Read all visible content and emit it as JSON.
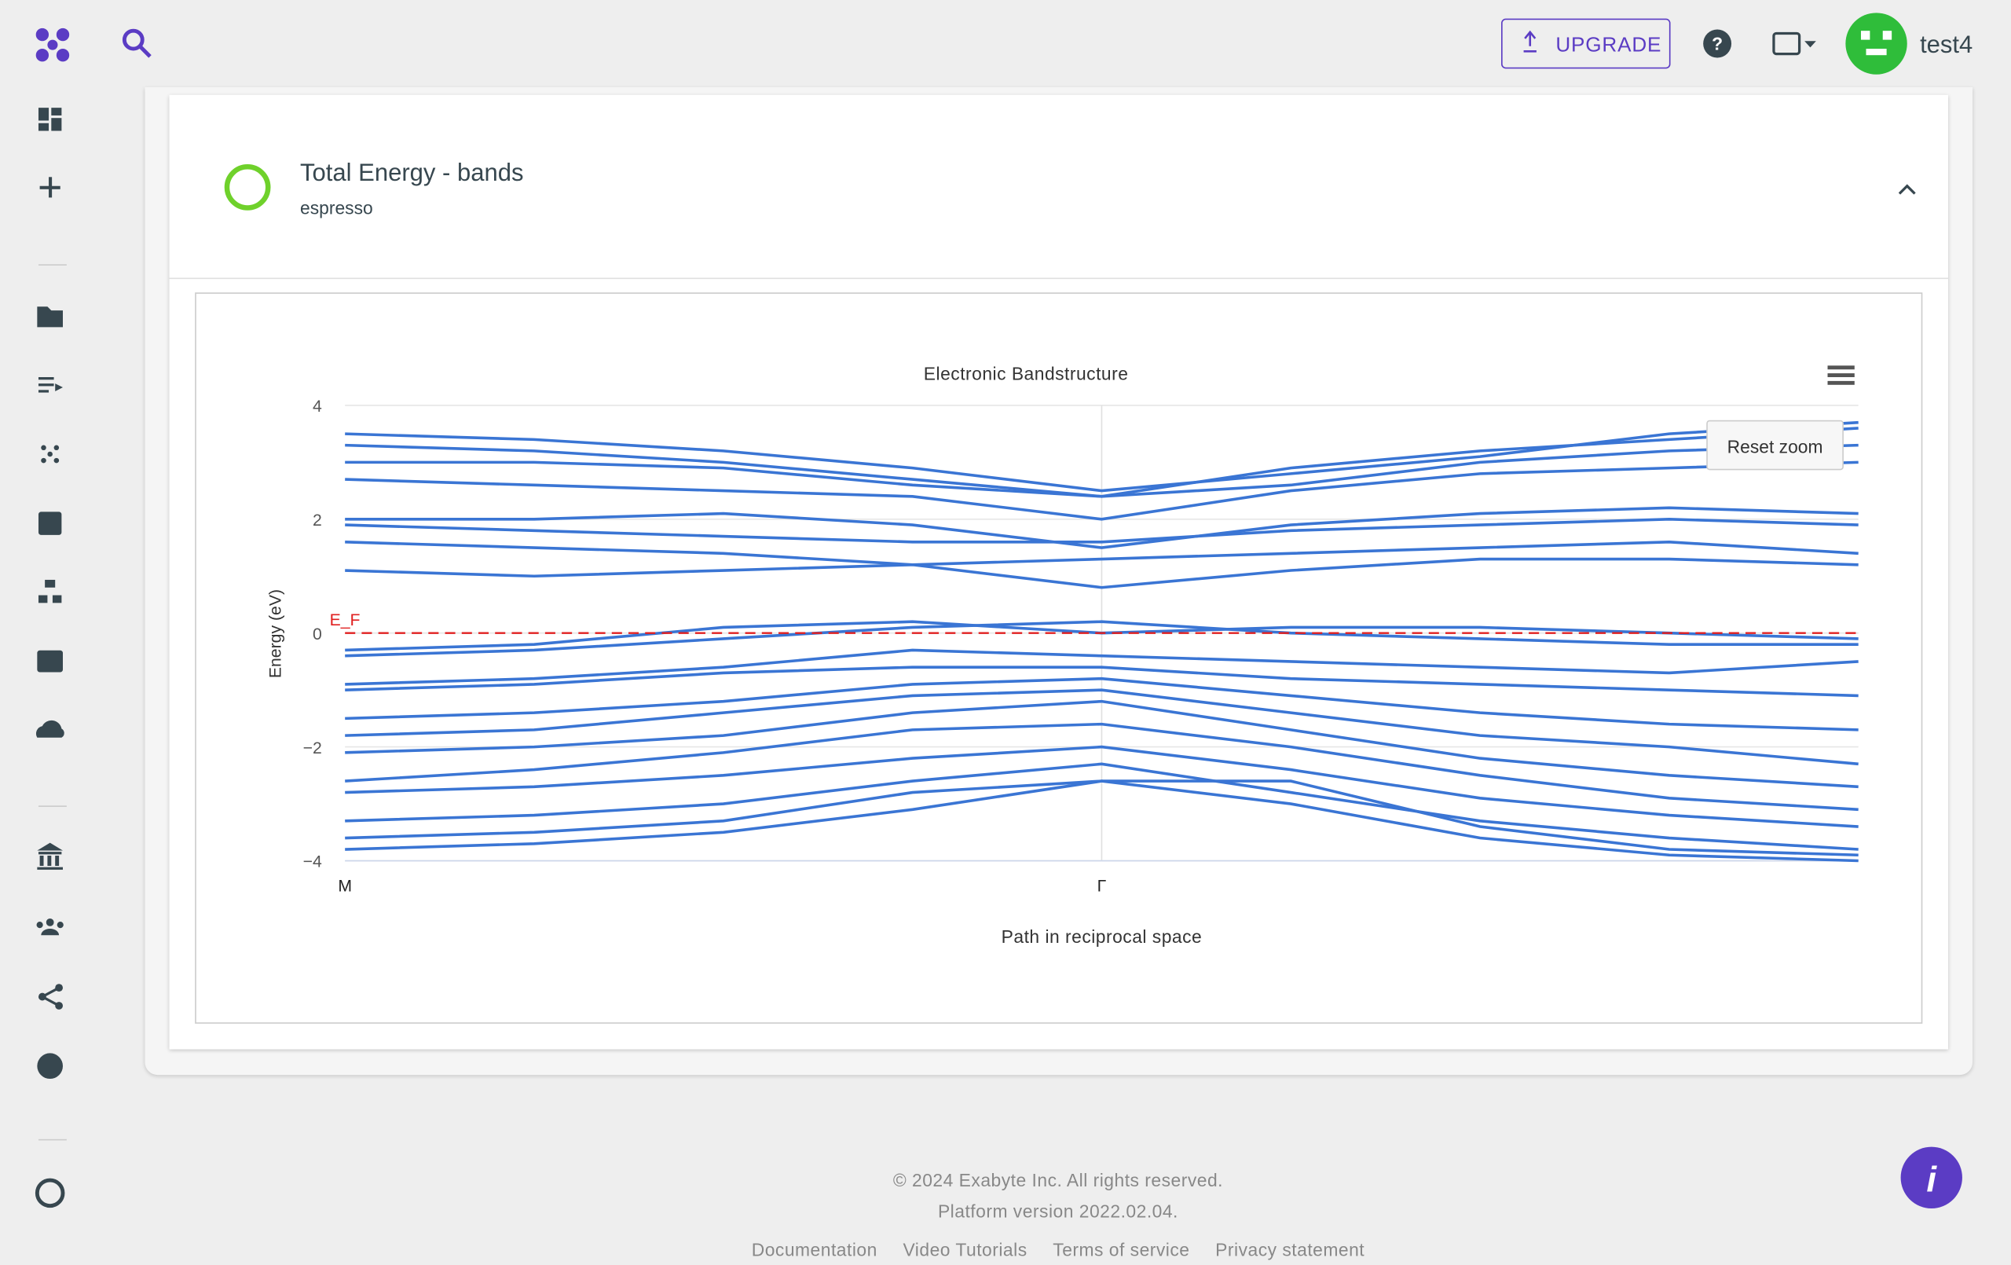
{
  "header": {
    "upgrade": "UPGRADE",
    "username": "test4"
  },
  "card": {
    "title": "Total Energy - bands",
    "subtitle": "espresso"
  },
  "chart_data": {
    "type": "line",
    "title": "Electronic Bandstructure",
    "x_label": "Path in reciprocal space",
    "y_label": "Energy (eV)",
    "categories": [
      "M",
      null,
      null,
      null,
      "Γ",
      null,
      null,
      null,
      null
    ],
    "color": "#3a75d4",
    "grid": true,
    "ylim": [
      -4,
      4
    ],
    "yticks": [
      {
        "value": -4,
        "label": "−4"
      },
      {
        "value": -2,
        "label": "−2"
      },
      0,
      2,
      4
    ],
    "fermi_level": {
      "label": "E_F",
      "value": 0,
      "color": "#e02020"
    },
    "reset_zoom": "Reset zoom",
    "series": [
      {
        "values": [
          3.5,
          3.4,
          3.2,
          2.9,
          2.5,
          2.8,
          3.1,
          3.5,
          3.7
        ]
      },
      {
        "values": [
          3.3,
          3.2,
          3.0,
          2.7,
          2.4,
          2.9,
          3.2,
          3.4,
          3.6
        ]
      },
      {
        "values": [
          3.0,
          3.0,
          2.9,
          2.6,
          2.4,
          2.6,
          3.0,
          3.2,
          3.3
        ]
      },
      {
        "values": [
          2.7,
          2.6,
          2.5,
          2.4,
          2.0,
          2.5,
          2.8,
          2.9,
          3.0
        ]
      },
      {
        "values": [
          2.0,
          2.0,
          2.1,
          1.9,
          1.5,
          1.9,
          2.1,
          2.2,
          2.1
        ]
      },
      {
        "values": [
          1.9,
          1.8,
          1.7,
          1.6,
          1.6,
          1.8,
          1.9,
          2.0,
          1.9
        ]
      },
      {
        "values": [
          1.6,
          1.5,
          1.4,
          1.2,
          1.3,
          1.4,
          1.5,
          1.6,
          1.4
        ]
      },
      {
        "values": [
          1.1,
          1.0,
          1.1,
          1.2,
          0.8,
          1.1,
          1.3,
          1.3,
          1.2
        ]
      },
      {
        "values": [
          -0.3,
          -0.2,
          0.1,
          0.2,
          0.0,
          0.1,
          0.1,
          0.0,
          -0.1
        ]
      },
      {
        "values": [
          -0.4,
          -0.3,
          -0.1,
          0.1,
          0.2,
          0.0,
          -0.1,
          -0.2,
          -0.2
        ]
      },
      {
        "values": [
          -0.9,
          -0.8,
          -0.6,
          -0.3,
          -0.4,
          -0.5,
          -0.6,
          -0.7,
          -0.5
        ]
      },
      {
        "values": [
          -1.0,
          -0.9,
          -0.7,
          -0.6,
          -0.6,
          -0.8,
          -0.9,
          -1.0,
          -1.1
        ]
      },
      {
        "values": [
          -1.5,
          -1.4,
          -1.2,
          -0.9,
          -0.8,
          -1.1,
          -1.4,
          -1.6,
          -1.7
        ]
      },
      {
        "values": [
          -1.8,
          -1.7,
          -1.4,
          -1.1,
          -1.0,
          -1.4,
          -1.8,
          -2.0,
          -2.3
        ]
      },
      {
        "values": [
          -2.1,
          -2.0,
          -1.8,
          -1.4,
          -1.2,
          -1.7,
          -2.2,
          -2.5,
          -2.7
        ]
      },
      {
        "values": [
          -2.6,
          -2.4,
          -2.1,
          -1.7,
          -1.6,
          -2.0,
          -2.5,
          -2.9,
          -3.1
        ]
      },
      {
        "values": [
          -2.8,
          -2.7,
          -2.5,
          -2.2,
          -2.0,
          -2.4,
          -2.9,
          -3.2,
          -3.4
        ]
      },
      {
        "values": [
          -3.3,
          -3.2,
          -3.0,
          -2.6,
          -2.3,
          -2.8,
          -3.3,
          -3.6,
          -3.8
        ]
      },
      {
        "values": [
          -3.6,
          -3.5,
          -3.3,
          -2.8,
          -2.6,
          -3.0,
          -3.6,
          -3.9,
          -4.0
        ]
      },
      {
        "values": [
          -3.8,
          -3.7,
          -3.5,
          -3.1,
          -2.6,
          -2.6,
          -3.4,
          -3.8,
          -3.9
        ]
      }
    ]
  },
  "footer": {
    "copyright": "© 2024 Exabyte Inc. All rights reserved.",
    "version": "Platform version 2022.02.04.",
    "links": [
      "Documentation",
      "Video Tutorials",
      "Terms of service",
      "Privacy statement"
    ]
  }
}
